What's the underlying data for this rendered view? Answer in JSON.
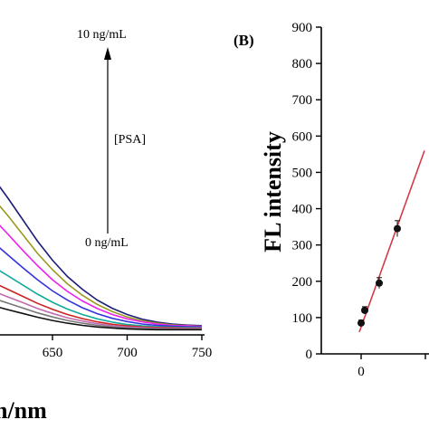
{
  "chart_data": [
    {
      "type": "line",
      "xlabel": "n/nm",
      "ylabel": "",
      "x_ticks": [
        "650",
        "700",
        "750"
      ],
      "x_range": [
        600,
        750
      ],
      "annotations": {
        "top": "10 ng/mL",
        "middle": "[PSA]",
        "bottom": "0 ng/mL"
      },
      "x": [
        600,
        610,
        620,
        630,
        640,
        650,
        660,
        670,
        680,
        690,
        700,
        710,
        720,
        730,
        740,
        750
      ],
      "series": [
        {
          "color": "#1c1c7a",
          "values": [
            640,
            580,
            505,
            425,
            345,
            275,
            215,
            168,
            128,
            98,
            75,
            58,
            47,
            40,
            36,
            34
          ]
        },
        {
          "color": "#9a9a1e",
          "values": [
            560,
            505,
            440,
            370,
            300,
            240,
            188,
            146,
            112,
            86,
            66,
            52,
            43,
            37,
            34,
            32
          ]
        },
        {
          "color": "#ee22ee",
          "values": [
            475,
            430,
            372,
            312,
            255,
            203,
            160,
            125,
            97,
            75,
            59,
            48,
            40,
            35,
            33,
            31
          ]
        },
        {
          "color": "#3333dd",
          "values": [
            380,
            342,
            295,
            248,
            203,
            162,
            128,
            100,
            78,
            61,
            49,
            40,
            35,
            32,
            30,
            29
          ]
        },
        {
          "color": "#11aa99",
          "values": [
            280,
            252,
            218,
            184,
            150,
            120,
            95,
            75,
            59,
            47,
            38,
            33,
            30,
            28,
            27,
            27
          ]
        },
        {
          "color": "#cc2222",
          "values": [
            215,
            194,
            168,
            142,
            116,
            94,
            75,
            60,
            48,
            39,
            33,
            29,
            27,
            26,
            25,
            25
          ]
        },
        {
          "color": "#c06bb0",
          "values": [
            180,
            162,
            140,
            119,
            97,
            79,
            63,
            51,
            41,
            34,
            29,
            26,
            24,
            23,
            23,
            23
          ]
        },
        {
          "color": "#777777",
          "values": [
            150,
            135,
            117,
            99,
            81,
            66,
            53,
            43,
            35,
            29,
            25,
            23,
            22,
            21,
            21,
            21
          ]
        },
        {
          "color": "#111111",
          "values": [
            120,
            108,
            93,
            79,
            65,
            53,
            43,
            35,
            29,
            25,
            22,
            20,
            19,
            19,
            19,
            19
          ]
        }
      ]
    },
    {
      "type": "scatter",
      "panel_label": "(B)",
      "ylabel": "FL intensity",
      "y_ticks": [
        "0",
        "100",
        "200",
        "300",
        "400",
        "500",
        "600",
        "700",
        "800",
        "900"
      ],
      "ylim": [
        0,
        900
      ],
      "x_ticks": [
        "0"
      ],
      "marker_color": "#111111",
      "fit_color": "#d63a4a",
      "points": [
        {
          "x": 0.0,
          "y": 85,
          "err": 8
        },
        {
          "x": 0.1,
          "y": 120,
          "err": 10
        },
        {
          "x": 0.5,
          "y": 195,
          "err": 15
        },
        {
          "x": 1.0,
          "y": 345,
          "err": 22
        }
      ],
      "fit": [
        {
          "x": -0.05,
          "y": 60
        },
        {
          "x": 1.75,
          "y": 560
        }
      ]
    }
  ]
}
